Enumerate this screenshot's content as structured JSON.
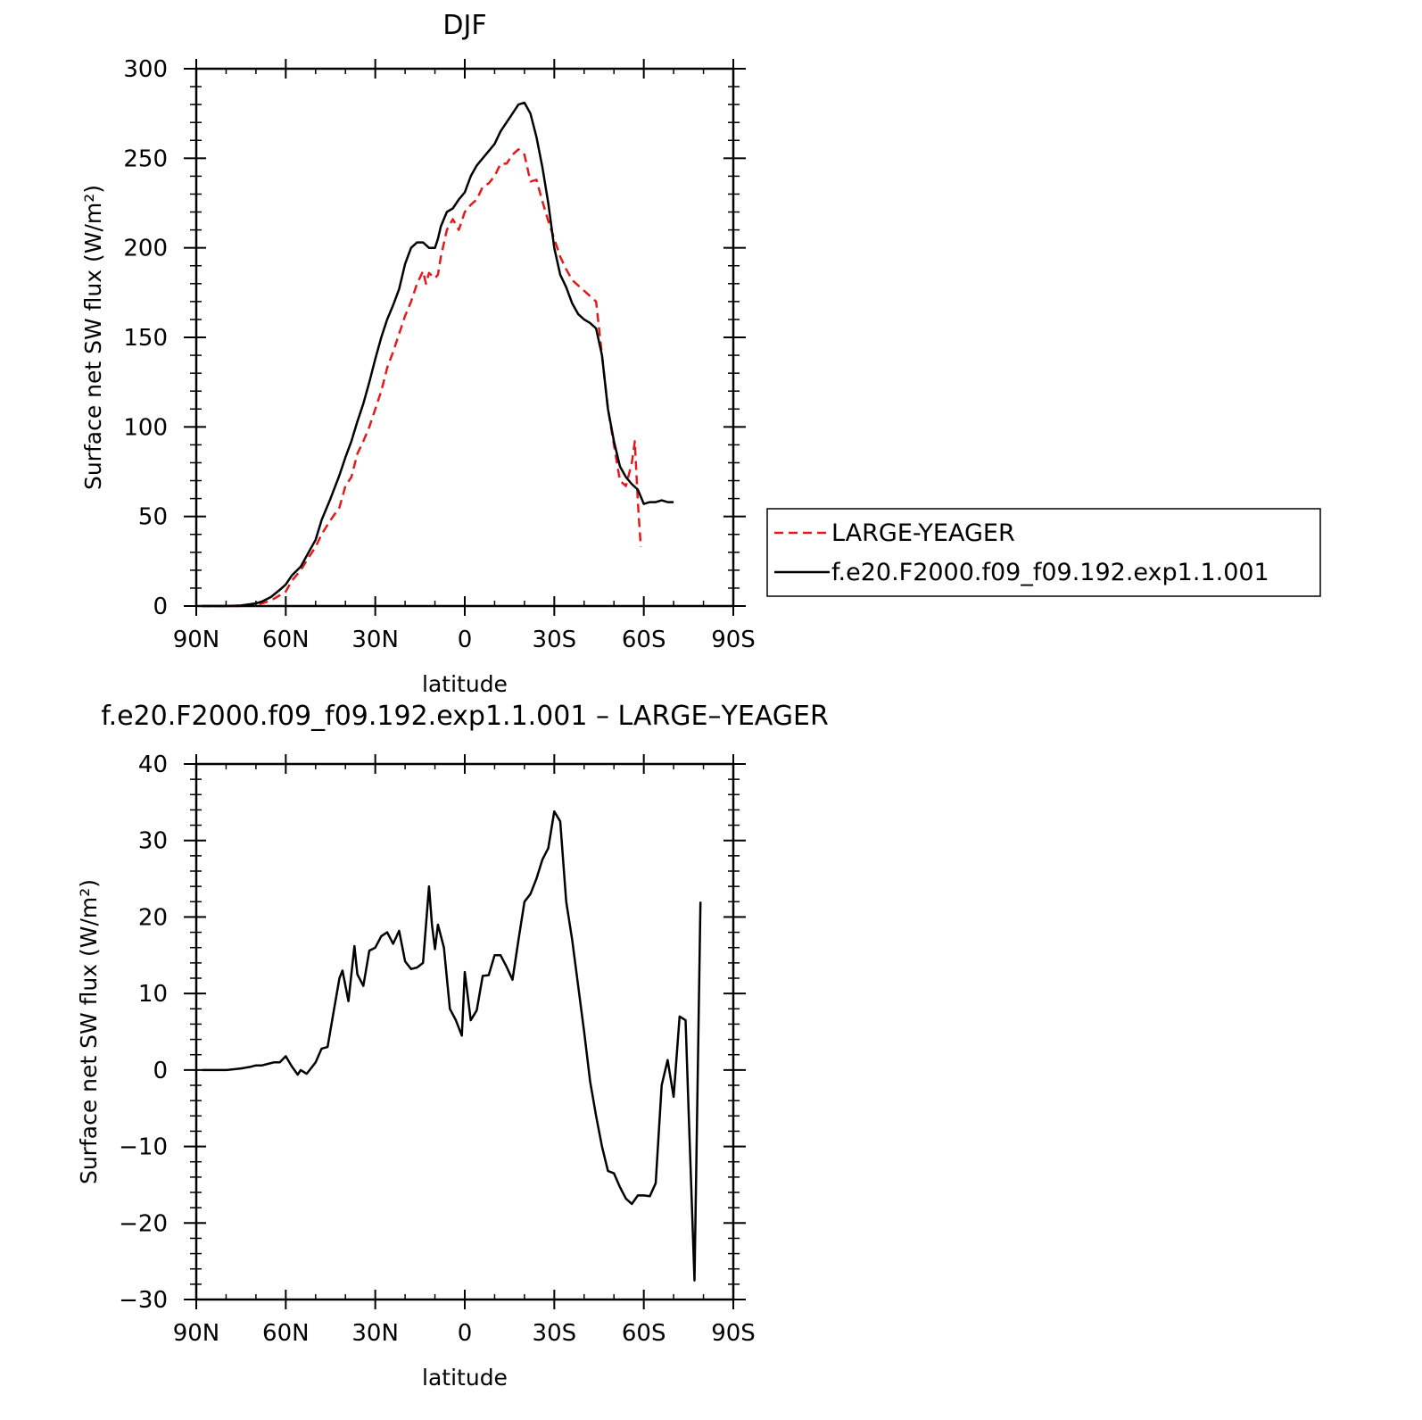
{
  "chart_data": [
    {
      "type": "line",
      "title": "DJF",
      "xlabel": "latitude",
      "ylabel": "Surface net SW flux (W/m²)",
      "xlim": [
        90,
        -90
      ],
      "ylim": [
        0,
        300
      ],
      "xticks": [
        90,
        60,
        30,
        0,
        -30,
        -60,
        -90
      ],
      "xtick_labels": [
        "90N",
        "60N",
        "30N",
        "0",
        "30S",
        "60S",
        "90S"
      ],
      "yticks": [
        0,
        50,
        100,
        150,
        200,
        250,
        300
      ],
      "ytick_labels": [
        "0",
        "50",
        "100",
        "150",
        "200",
        "250",
        "300"
      ],
      "grid": false,
      "legend_position": "right",
      "series": [
        {
          "name": "LARGE-YEAGER",
          "color": "#e31a1c",
          "style": "dashed",
          "points": [
            [
              88,
              0
            ],
            [
              80,
              0
            ],
            [
              75,
              0
            ],
            [
              72,
              0.5
            ],
            [
              70,
              1
            ],
            [
              68,
              1.5
            ],
            [
              65,
              3
            ],
            [
              62,
              6
            ],
            [
              60,
              8
            ],
            [
              58,
              14
            ],
            [
              55,
              20
            ],
            [
              52,
              28
            ],
            [
              50,
              33
            ],
            [
              48,
              40
            ],
            [
              45,
              48
            ],
            [
              42,
              55
            ],
            [
              40,
              67
            ],
            [
              38,
              72
            ],
            [
              36,
              85
            ],
            [
              34,
              92
            ],
            [
              32,
              100
            ],
            [
              30,
              110
            ],
            [
              28,
              120
            ],
            [
              26,
              133
            ],
            [
              24,
              142
            ],
            [
              22,
              152
            ],
            [
              20,
              162
            ],
            [
              18,
              170
            ],
            [
              16,
              180
            ],
            [
              14,
              187
            ],
            [
              13,
              180
            ],
            [
              12,
              186
            ],
            [
              10,
              183
            ],
            [
              9,
              185
            ],
            [
              8,
              195
            ],
            [
              6,
              210
            ],
            [
              4,
              216
            ],
            [
              2,
              210
            ],
            [
              0,
              220
            ],
            [
              -2,
              224
            ],
            [
              -4,
              227
            ],
            [
              -6,
              234
            ],
            [
              -8,
              236
            ],
            [
              -10,
              240
            ],
            [
              -12,
              247
            ],
            [
              -14,
              247
            ],
            [
              -16,
              252
            ],
            [
              -18,
              255
            ],
            [
              -20,
              252
            ],
            [
              -22,
              237
            ],
            [
              -24,
              238
            ],
            [
              -26,
              226
            ],
            [
              -28,
              215
            ],
            [
              -30,
              205
            ],
            [
              -32,
              195
            ],
            [
              -34,
              188
            ],
            [
              -36,
              182
            ],
            [
              -38,
              179
            ],
            [
              -40,
              176
            ],
            [
              -42,
              173
            ],
            [
              -44,
              170
            ],
            [
              -46,
              140
            ],
            [
              -48,
              110
            ],
            [
              -50,
              90
            ],
            [
              -52,
              70
            ],
            [
              -54,
              67
            ],
            [
              -56,
              80
            ],
            [
              -57,
              92
            ],
            [
              -58,
              58
            ],
            [
              -59,
              33
            ]
          ]
        },
        {
          "name": "f.e20.F2000.f09_f09.192.exp1.1.001",
          "color": "#000000",
          "style": "solid",
          "points": [
            [
              88,
              0
            ],
            [
              80,
              0
            ],
            [
              75,
              0.3
            ],
            [
              72,
              1
            ],
            [
              70,
              1.5
            ],
            [
              68,
              2.5
            ],
            [
              65,
              5
            ],
            [
              62,
              9
            ],
            [
              60,
              12
            ],
            [
              58,
              17
            ],
            [
              55,
              22
            ],
            [
              52,
              31
            ],
            [
              50,
              37
            ],
            [
              48,
              48
            ],
            [
              45,
              60
            ],
            [
              42,
              73
            ],
            [
              40,
              83
            ],
            [
              38,
              92
            ],
            [
              36,
              103
            ],
            [
              34,
              113
            ],
            [
              32,
              125
            ],
            [
              30,
              138
            ],
            [
              28,
              150
            ],
            [
              26,
              160
            ],
            [
              24,
              168
            ],
            [
              22,
              177
            ],
            [
              20,
              191
            ],
            [
              18,
              200
            ],
            [
              16,
              203
            ],
            [
              14,
              203
            ],
            [
              12,
              200
            ],
            [
              10,
              200
            ],
            [
              9,
              205
            ],
            [
              8,
              212
            ],
            [
              6,
              220
            ],
            [
              4,
              222
            ],
            [
              2,
              227
            ],
            [
              0,
              231
            ],
            [
              -2,
              240
            ],
            [
              -4,
              246
            ],
            [
              -6,
              250
            ],
            [
              -8,
              254
            ],
            [
              -10,
              258
            ],
            [
              -12,
              265
            ],
            [
              -14,
              270
            ],
            [
              -16,
              275
            ],
            [
              -18,
              280
            ],
            [
              -20,
              281
            ],
            [
              -22,
              275
            ],
            [
              -24,
              262
            ],
            [
              -26,
              245
            ],
            [
              -28,
              225
            ],
            [
              -30,
              200
            ],
            [
              -32,
              185
            ],
            [
              -34,
              178
            ],
            [
              -36,
              169
            ],
            [
              -38,
              163
            ],
            [
              -40,
              160
            ],
            [
              -42,
              158
            ],
            [
              -44,
              155
            ],
            [
              -46,
              140
            ],
            [
              -48,
              110
            ],
            [
              -50,
              92
            ],
            [
              -52,
              78
            ],
            [
              -54,
              72
            ],
            [
              -56,
              68
            ],
            [
              -58,
              65
            ],
            [
              -60,
              57
            ],
            [
              -62,
              58
            ],
            [
              -64,
              58
            ],
            [
              -66,
              59
            ],
            [
              -68,
              58
            ],
            [
              -70,
              58
            ]
          ]
        }
      ]
    },
    {
      "type": "line",
      "title": "f.e20.F2000.f09_f09.192.exp1.1.001 – LARGE–YEAGER",
      "xlabel": "latitude",
      "ylabel": "Surface net SW flux (W/m²)",
      "xlim": [
        90,
        -90
      ],
      "ylim": [
        -30,
        40
      ],
      "xticks": [
        90,
        60,
        30,
        0,
        -30,
        -60,
        -90
      ],
      "xtick_labels": [
        "90N",
        "60N",
        "30N",
        "0",
        "30S",
        "60S",
        "90S"
      ],
      "yticks": [
        -30,
        -20,
        -10,
        0,
        10,
        20,
        30,
        40
      ],
      "ytick_labels": [
        "−30",
        "−20",
        "−10",
        "0",
        "10",
        "20",
        "30",
        "40"
      ],
      "grid": false,
      "series": [
        {
          "color": "#000000",
          "style": "solid",
          "points": [
            [
              88,
              0
            ],
            [
              80,
              0
            ],
            [
              75,
              0.2
            ],
            [
              72,
              0.4
            ],
            [
              70,
              0.6
            ],
            [
              68,
              0.6
            ],
            [
              66,
              0.8
            ],
            [
              64,
              1
            ],
            [
              62,
              1
            ],
            [
              60,
              1.8
            ],
            [
              58,
              0.5
            ],
            [
              56,
              -0.6
            ],
            [
              55,
              0
            ],
            [
              53,
              -0.5
            ],
            [
              52,
              0
            ],
            [
              50,
              1
            ],
            [
              48,
              2.8
            ],
            [
              46,
              3
            ],
            [
              44,
              7.5
            ],
            [
              42,
              12
            ],
            [
              41,
              13
            ],
            [
              39,
              9
            ],
            [
              37,
              16.2
            ],
            [
              36,
              12.5
            ],
            [
              34,
              11
            ],
            [
              32,
              15.6
            ],
            [
              30,
              16
            ],
            [
              28,
              17.5
            ],
            [
              26,
              18
            ],
            [
              24,
              16.5
            ],
            [
              22,
              18.2
            ],
            [
              20,
              14.2
            ],
            [
              18,
              13.2
            ],
            [
              16,
              13.4
            ],
            [
              14,
              14
            ],
            [
              12,
              24
            ],
            [
              11,
              19
            ],
            [
              10,
              15.8
            ],
            [
              9,
              19
            ],
            [
              7,
              16
            ],
            [
              5,
              8
            ],
            [
              3,
              6.5
            ],
            [
              1,
              4.5
            ],
            [
              0,
              12.8
            ],
            [
              -2,
              6.5
            ],
            [
              -4,
              7.8
            ],
            [
              -6,
              12.3
            ],
            [
              -8,
              12.4
            ],
            [
              -10,
              15
            ],
            [
              -12,
              15
            ],
            [
              -14,
              13.5
            ],
            [
              -16,
              11.8
            ],
            [
              -18,
              17
            ],
            [
              -20,
              22
            ],
            [
              -22,
              23
            ],
            [
              -24,
              25
            ],
            [
              -26,
              27.5
            ],
            [
              -28,
              29
            ],
            [
              -30,
              33.8
            ],
            [
              -32,
              32.5
            ],
            [
              -34,
              22
            ],
            [
              -36,
              17
            ],
            [
              -38,
              11
            ],
            [
              -40,
              5
            ],
            [
              -42,
              -1.5
            ],
            [
              -44,
              -6
            ],
            [
              -46,
              -10
            ],
            [
              -48,
              -13.2
            ],
            [
              -50,
              -13.5
            ],
            [
              -52,
              -15.3
            ],
            [
              -54,
              -16.8
            ],
            [
              -56,
              -17.5
            ],
            [
              -58,
              -16.4
            ],
            [
              -60,
              -16.4
            ],
            [
              -62,
              -16.5
            ],
            [
              -64,
              -14.8
            ],
            [
              -66,
              -2
            ],
            [
              -68,
              1.3
            ],
            [
              -70,
              -3.5
            ],
            [
              -72,
              7
            ],
            [
              -74,
              6.5
            ],
            [
              -75,
              -5
            ],
            [
              -77,
              -27.5
            ],
            [
              -79,
              22
            ]
          ]
        }
      ]
    }
  ]
}
